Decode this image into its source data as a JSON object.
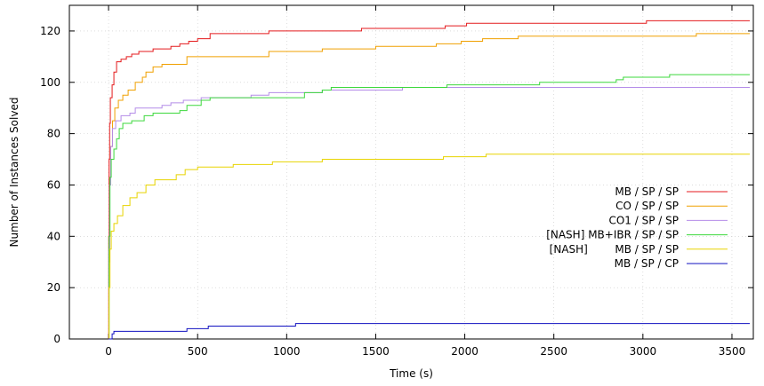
{
  "chart_data": {
    "type": "line",
    "xlabel": "Time (s)",
    "ylabel": "Number of Instances Solved",
    "xlim": [
      -220,
      3620
    ],
    "ylim": [
      0,
      130
    ],
    "x_ticks": [
      0,
      500,
      1000,
      1500,
      2000,
      2500,
      3000,
      3500
    ],
    "y_ticks": [
      0,
      20,
      40,
      60,
      80,
      100,
      120
    ],
    "grid": "dotted",
    "legend_position": "right",
    "series": [
      {
        "name": "MB / SP / SP",
        "color": "#e41a1c",
        "points": [
          [
            0,
            0
          ],
          [
            1,
            40
          ],
          [
            3,
            70
          ],
          [
            6,
            84
          ],
          [
            10,
            94
          ],
          [
            20,
            99
          ],
          [
            30,
            104
          ],
          [
            45,
            108
          ],
          [
            70,
            109
          ],
          [
            100,
            110
          ],
          [
            130,
            111
          ],
          [
            170,
            112
          ],
          [
            250,
            113
          ],
          [
            350,
            114
          ],
          [
            400,
            115
          ],
          [
            450,
            116
          ],
          [
            500,
            117
          ],
          [
            570,
            119
          ],
          [
            900,
            120
          ],
          [
            1420,
            121
          ],
          [
            1890,
            122
          ],
          [
            2010,
            123
          ],
          [
            3020,
            124
          ],
          [
            3600,
            124
          ]
        ]
      },
      {
        "name": "CO / SP / SP",
        "color": "#f0a000",
        "points": [
          [
            0,
            0
          ],
          [
            2,
            30
          ],
          [
            6,
            60
          ],
          [
            12,
            75
          ],
          [
            22,
            85
          ],
          [
            35,
            90
          ],
          [
            55,
            93
          ],
          [
            80,
            95
          ],
          [
            110,
            97
          ],
          [
            150,
            100
          ],
          [
            190,
            102
          ],
          [
            210,
            104
          ],
          [
            250,
            106
          ],
          [
            300,
            107
          ],
          [
            440,
            110
          ],
          [
            560,
            110
          ],
          [
            900,
            112
          ],
          [
            1200,
            113
          ],
          [
            1500,
            114
          ],
          [
            1840,
            115
          ],
          [
            1980,
            116
          ],
          [
            2100,
            117
          ],
          [
            2300,
            118
          ],
          [
            3300,
            119
          ],
          [
            3600,
            119
          ]
        ]
      },
      {
        "name": "CO1 / SP / SP",
        "color": "#b48ce8",
        "points": [
          [
            0,
            0
          ],
          [
            2,
            35
          ],
          [
            6,
            60
          ],
          [
            12,
            75
          ],
          [
            22,
            82
          ],
          [
            40,
            85
          ],
          [
            70,
            87
          ],
          [
            120,
            88
          ],
          [
            150,
            90
          ],
          [
            300,
            91
          ],
          [
            350,
            92
          ],
          [
            420,
            93
          ],
          [
            520,
            94
          ],
          [
            600,
            94
          ],
          [
            800,
            95
          ],
          [
            900,
            96
          ],
          [
            1200,
            97
          ],
          [
            1650,
            98
          ],
          [
            3600,
            98
          ]
        ]
      },
      {
        "name": "[NASH] MB+IBR / SP / SP",
        "color": "#3cd83c",
        "points": [
          [
            0,
            0
          ],
          [
            3,
            40
          ],
          [
            8,
            63
          ],
          [
            15,
            70
          ],
          [
            30,
            74
          ],
          [
            45,
            78
          ],
          [
            60,
            82
          ],
          [
            80,
            84
          ],
          [
            130,
            85
          ],
          [
            200,
            87
          ],
          [
            250,
            88
          ],
          [
            400,
            89
          ],
          [
            440,
            91
          ],
          [
            520,
            93
          ],
          [
            570,
            94
          ],
          [
            1100,
            96
          ],
          [
            1200,
            97
          ],
          [
            1250,
            98
          ],
          [
            1800,
            98
          ],
          [
            1900,
            99
          ],
          [
            2420,
            100
          ],
          [
            2850,
            101
          ],
          [
            2890,
            102
          ],
          [
            3150,
            103
          ],
          [
            3600,
            103
          ]
        ]
      },
      {
        "name": "[NASH]        MB / SP / SP",
        "color": "#e8d400",
        "points": [
          [
            0,
            0
          ],
          [
            3,
            20
          ],
          [
            8,
            35
          ],
          [
            15,
            42
          ],
          [
            30,
            45
          ],
          [
            50,
            48
          ],
          [
            80,
            52
          ],
          [
            120,
            55
          ],
          [
            160,
            57
          ],
          [
            210,
            60
          ],
          [
            260,
            62
          ],
          [
            380,
            64
          ],
          [
            430,
            66
          ],
          [
            500,
            67
          ],
          [
            700,
            68
          ],
          [
            920,
            69
          ],
          [
            1200,
            70
          ],
          [
            1550,
            70
          ],
          [
            1880,
            71
          ],
          [
            2120,
            72
          ],
          [
            3600,
            72
          ]
        ]
      },
      {
        "name": "MB / SP / CP",
        "color": "#1010c0",
        "points": [
          [
            0,
            0
          ],
          [
            20,
            2
          ],
          [
            30,
            3
          ],
          [
            400,
            3
          ],
          [
            440,
            4
          ],
          [
            560,
            5
          ],
          [
            1050,
            6
          ],
          [
            3600,
            6
          ]
        ]
      }
    ]
  }
}
